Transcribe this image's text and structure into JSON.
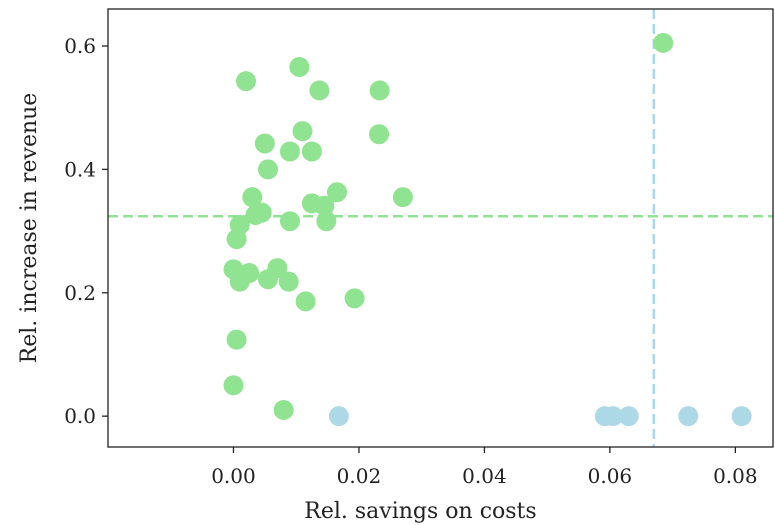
{
  "chart_data": {
    "type": "scatter",
    "xlabel": "Rel. savings on costs",
    "ylabel": "Rel. increase in revenue",
    "xlim": [
      -0.02,
      0.086
    ],
    "ylim": [
      -0.05,
      0.66
    ],
    "x_ticks": [
      0.0,
      0.02,
      0.04,
      0.06,
      0.08
    ],
    "x_tick_labels": [
      "0.00",
      "0.02",
      "0.04",
      "0.06",
      "0.08"
    ],
    "y_ticks": [
      0.0,
      0.2,
      0.4,
      0.6
    ],
    "y_tick_labels": [
      "0.0",
      "0.2",
      "0.4",
      "0.6"
    ],
    "grid": false,
    "legend": "none",
    "reference_lines": [
      {
        "orientation": "horizontal",
        "value": 0.324,
        "color": "#90e390",
        "style": "dashed"
      },
      {
        "orientation": "vertical",
        "value": 0.067,
        "color": "#a9d8ec",
        "style": "dashed"
      }
    ],
    "series": [
      {
        "color": "#90e390",
        "points": [
          [
            0.002,
            0.543
          ],
          [
            0.0105,
            0.566
          ],
          [
            0.0137,
            0.528
          ],
          [
            0.0233,
            0.528
          ],
          [
            0.011,
            0.462
          ],
          [
            0.0232,
            0.457
          ],
          [
            0.005,
            0.442
          ],
          [
            0.009,
            0.429
          ],
          [
            0.0125,
            0.429
          ],
          [
            0.0055,
            0.4
          ],
          [
            0.003,
            0.355
          ],
          [
            0.0165,
            0.363
          ],
          [
            0.027,
            0.355
          ],
          [
            0.0125,
            0.345
          ],
          [
            0.0145,
            0.341
          ],
          [
            0.001,
            0.31
          ],
          [
            0.0045,
            0.33
          ],
          [
            0.0035,
            0.326
          ],
          [
            0.009,
            0.316
          ],
          [
            0.0148,
            0.316
          ],
          [
            0.0005,
            0.287
          ],
          [
            0.0,
            0.238
          ],
          [
            0.0025,
            0.232
          ],
          [
            0.007,
            0.24
          ],
          [
            0.0055,
            0.222
          ],
          [
            0.001,
            0.218
          ],
          [
            0.0088,
            0.218
          ],
          [
            0.0193,
            0.191
          ],
          [
            0.0115,
            0.186
          ],
          [
            0.0005,
            0.124
          ],
          [
            0.0,
            0.05
          ],
          [
            0.008,
            0.01
          ],
          [
            0.0685,
            0.605
          ]
        ]
      },
      {
        "color": "#add8e6",
        "points": [
          [
            0.0168,
            0.0
          ],
          [
            0.0592,
            0.0
          ],
          [
            0.0605,
            0.0
          ],
          [
            0.063,
            0.0
          ],
          [
            0.0725,
            0.0
          ],
          [
            0.081,
            0.0
          ]
        ]
      }
    ]
  }
}
